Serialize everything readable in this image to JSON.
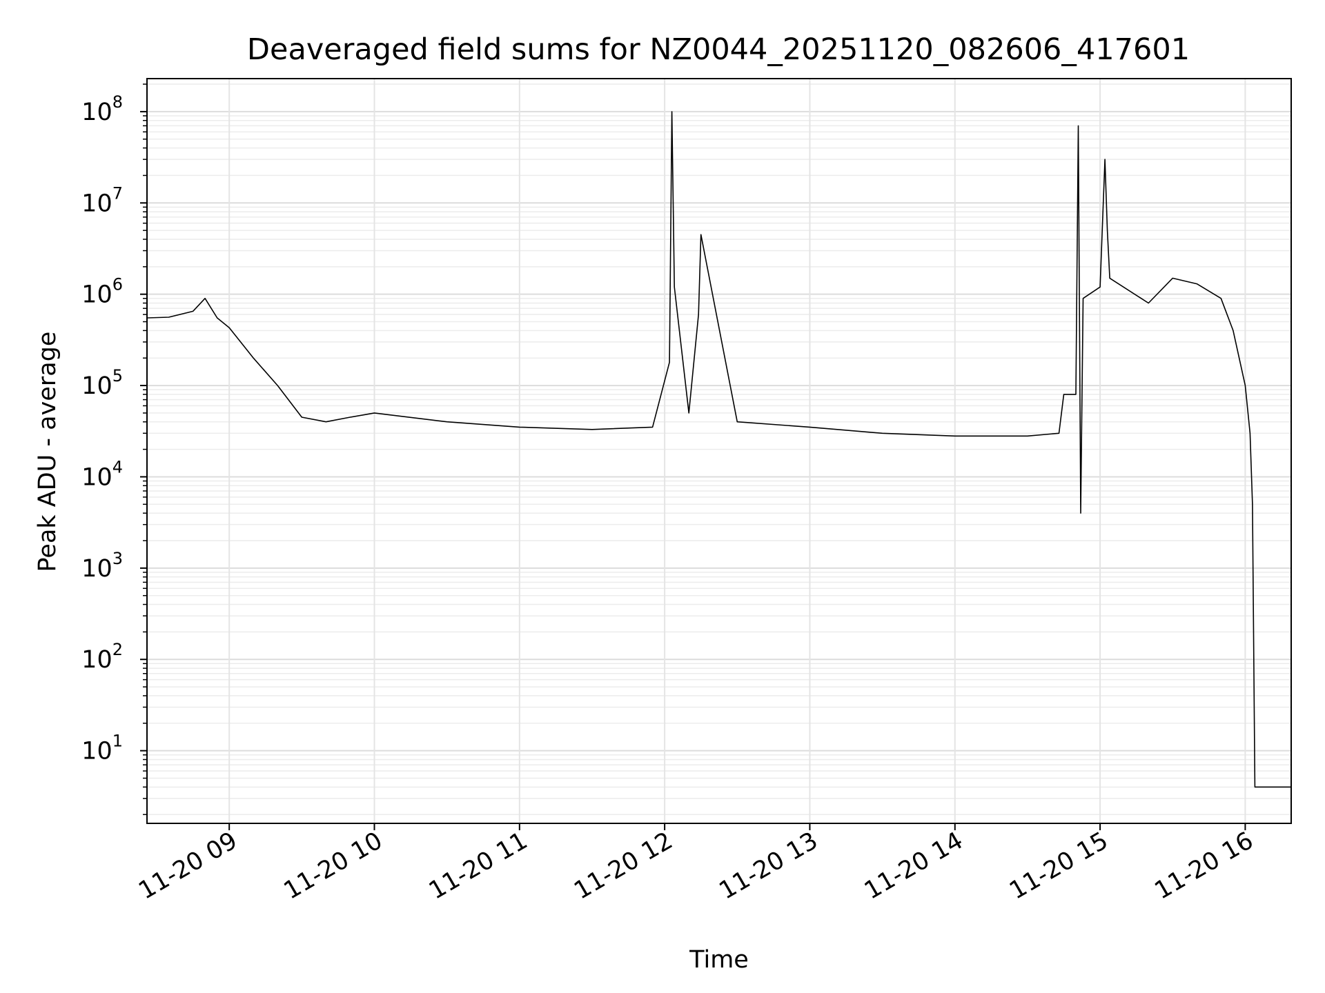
{
  "chart_data": {
    "type": "line",
    "title": "Deaveraged field sums for NZ0044_20251120_082606_417601",
    "xlabel": "Time",
    "ylabel": "Peak ADU - average",
    "xscale": "time",
    "yscale": "log",
    "xlim": [
      "2025-11-20 08:26",
      "2025-11-20 16:19"
    ],
    "ylim": [
      1.6,
      230000000.0
    ],
    "grid": true,
    "legend": "none",
    "line_color": "#000000",
    "x_tick_labels": [
      "11-20 09",
      "11-20 10",
      "11-20 11",
      "11-20 12",
      "11-20 13",
      "11-20 14",
      "11-20 15",
      "11-20 16"
    ],
    "x_ticks": [
      "2025-11-20 09:00",
      "2025-11-20 10:00",
      "2025-11-20 11:00",
      "2025-11-20 12:00",
      "2025-11-20 13:00",
      "2025-11-20 14:00",
      "2025-11-20 15:00",
      "2025-11-20 16:00"
    ],
    "y_ticks": [
      {
        "base": "10",
        "exp": "1",
        "value": 10
      },
      {
        "base": "10",
        "exp": "2",
        "value": 100
      },
      {
        "base": "10",
        "exp": "3",
        "value": 1000
      },
      {
        "base": "10",
        "exp": "4",
        "value": 10000
      },
      {
        "base": "10",
        "exp": "5",
        "value": 100000
      },
      {
        "base": "10",
        "exp": "6",
        "value": 1000000
      },
      {
        "base": "10",
        "exp": "7",
        "value": 10000000
      },
      {
        "base": "10",
        "exp": "8",
        "value": 100000000
      }
    ],
    "series": [
      {
        "x": [
          "2025-11-20 08:26",
          "2025-11-20 08:35",
          "2025-11-20 08:45",
          "2025-11-20 08:50",
          "2025-11-20 08:55",
          "2025-11-20 09:00",
          "2025-11-20 09:10",
          "2025-11-20 09:20",
          "2025-11-20 09:30",
          "2025-11-20 09:40",
          "2025-11-20 09:50",
          "2025-11-20 10:00",
          "2025-11-20 10:30",
          "2025-11-20 11:00",
          "2025-11-20 11:30",
          "2025-11-20 11:55",
          "2025-11-20 12:02",
          "2025-11-20 12:03",
          "2025-11-20 12:04",
          "2025-11-20 12:10",
          "2025-11-20 12:14",
          "2025-11-20 12:15",
          "2025-11-20 12:30",
          "2025-11-20 13:00",
          "2025-11-20 13:30",
          "2025-11-20 14:00",
          "2025-11-20 14:30",
          "2025-11-20 14:43",
          "2025-11-20 14:45",
          "2025-11-20 14:50",
          "2025-11-20 14:51",
          "2025-11-20 14:52",
          "2025-11-20 14:53",
          "2025-11-20 15:00",
          "2025-11-20 15:02",
          "2025-11-20 15:03",
          "2025-11-20 15:04",
          "2025-11-20 15:20",
          "2025-11-20 15:30",
          "2025-11-20 15:40",
          "2025-11-20 15:50",
          "2025-11-20 15:55",
          "2025-11-20 16:00",
          "2025-11-20 16:02",
          "2025-11-20 16:03",
          "2025-11-20 16:04",
          "2025-11-20 16:19"
        ],
        "y": [
          550000,
          560000,
          650000,
          900000,
          550000,
          430000,
          200000,
          100000,
          45000,
          40000,
          45000,
          50000,
          40000,
          35000,
          33000,
          35000,
          180000,
          100000000,
          1200000,
          50000,
          600000,
          4500000,
          40000,
          35000,
          30000,
          28000,
          28000,
          30000,
          80000,
          80000,
          70000000,
          4000,
          900000,
          1200000,
          30000000,
          5000000,
          1500000,
          800000,
          1500000,
          1300000,
          900000,
          400000,
          100000,
          30000,
          5000,
          4,
          4
        ]
      }
    ]
  }
}
